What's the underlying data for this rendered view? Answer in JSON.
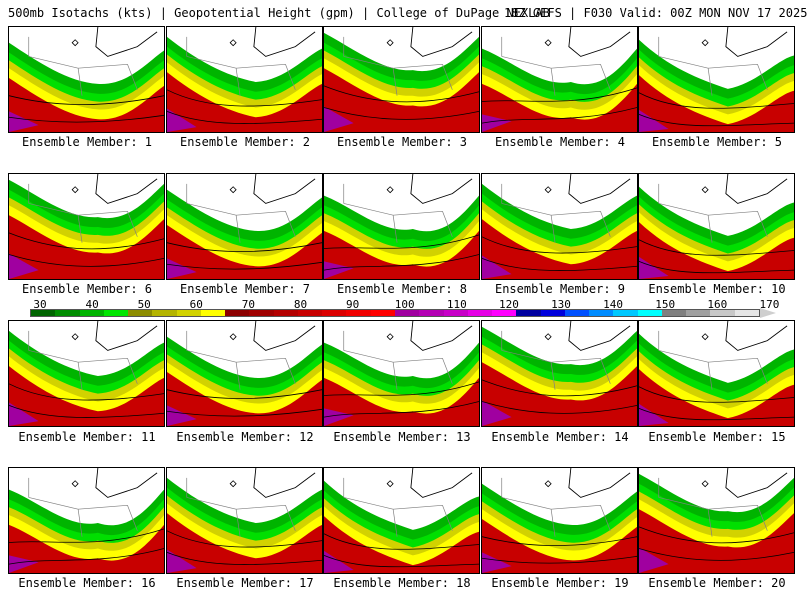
{
  "header": {
    "left": "500mb Isotachs (kts) | Geopotential Height (gpm) | College of DuPage NEXLAB",
    "right": "18Z GEFS | F030 Valid: 00Z MON NOV 17 2025"
  },
  "colorbar": {
    "labels": [
      "30",
      "40",
      "50",
      "60",
      "70",
      "80",
      "90",
      "100",
      "110",
      "120",
      "130",
      "140",
      "150",
      "160",
      "170"
    ],
    "colors": [
      "#006400",
      "#008c00",
      "#00b400",
      "#00e600",
      "#8c8c00",
      "#b4b400",
      "#d2d200",
      "#ffff00",
      "#8c0000",
      "#a00000",
      "#b40000",
      "#c80000",
      "#dc0000",
      "#f00000",
      "#ff0000",
      "#a000a0",
      "#b400b4",
      "#c800c8",
      "#e600e6",
      "#ff00ff",
      "#0000a0",
      "#0000dc",
      "#0050ff",
      "#008cff",
      "#00c8ff",
      "#00ffff",
      "#808080",
      "#a0a0a0",
      "#c8c8c8",
      "#e6e6e6"
    ]
  },
  "members": [
    {
      "caption": "Ensemble Member: 1",
      "variant": 0
    },
    {
      "caption": "Ensemble Member: 2",
      "variant": 1
    },
    {
      "caption": "Ensemble Member: 3",
      "variant": 2
    },
    {
      "caption": "Ensemble Member: 4",
      "variant": 3
    },
    {
      "caption": "Ensemble Member: 5",
      "variant": 4
    },
    {
      "caption": "Ensemble Member: 6",
      "variant": 2
    },
    {
      "caption": "Ensemble Member: 7",
      "variant": 0
    },
    {
      "caption": "Ensemble Member: 8",
      "variant": 3
    },
    {
      "caption": "Ensemble Member: 9",
      "variant": 1
    },
    {
      "caption": "Ensemble Member: 10",
      "variant": 4
    },
    {
      "caption": "Ensemble Member: 11",
      "variant": 1
    },
    {
      "caption": "Ensemble Member: 12",
      "variant": 0
    },
    {
      "caption": "Ensemble Member: 13",
      "variant": 3
    },
    {
      "caption": "Ensemble Member: 14",
      "variant": 2
    },
    {
      "caption": "Ensemble Member: 15",
      "variant": 4
    },
    {
      "caption": "Ensemble Member: 16",
      "variant": 3
    },
    {
      "caption": "Ensemble Member: 17",
      "variant": 1
    },
    {
      "caption": "Ensemble Member: 18",
      "variant": 4
    },
    {
      "caption": "Ensemble Member: 19",
      "variant": 0
    },
    {
      "caption": "Ensemble Member: 20",
      "variant": 2
    }
  ]
}
